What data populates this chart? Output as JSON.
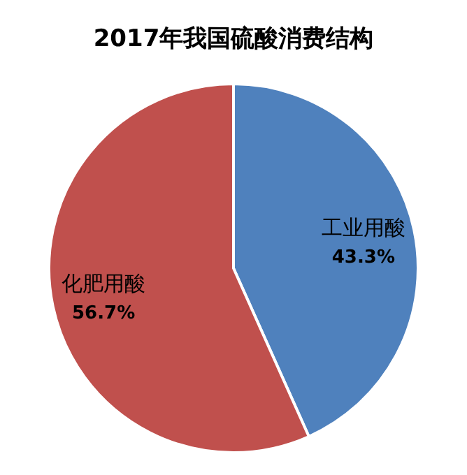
{
  "chart_data": {
    "type": "pie",
    "title": "2017年我国硫酸消费结构",
    "categories": [
      "工业用酸",
      "化肥用酸"
    ],
    "values": [
      43.3,
      56.7
    ],
    "colors": [
      "#4f81bd",
      "#c0504d"
    ],
    "value_labels": [
      "43.3%",
      "56.7%"
    ]
  }
}
